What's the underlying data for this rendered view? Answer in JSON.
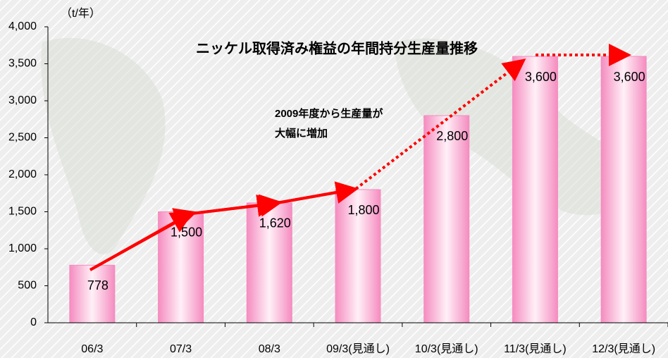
{
  "chart_data": {
    "type": "bar",
    "title": "ニッケル取得済み権益の年間持分生産量推移",
    "y_unit": "（t/年）",
    "annotation": [
      "2009年度から生産量が",
      "大幅に増加"
    ],
    "categories": [
      "06/3",
      "07/3",
      "08/3",
      "09/3(見通し)",
      "10/3(見通し)",
      "11/3(見通し)",
      "12/3(見通し)"
    ],
    "values": [
      778,
      1500,
      1620,
      1800,
      2800,
      3600,
      3600
    ],
    "value_labels": [
      "778",
      "1,500",
      "1,620",
      "1,800",
      "2,800",
      "3,600",
      "3,600"
    ],
    "color": "#f58cc0",
    "ylim": [
      0,
      4000
    ],
    "yticks": [
      0,
      500,
      {
        "value": 1000,
        "label": "1,000"
      },
      {
        "value": 1500,
        "label": "1,500"
      },
      {
        "value": 2000,
        "label": "2,000"
      },
      {
        "value": 2500,
        "label": "2,500"
      },
      {
        "value": 3000,
        "label": "3,000"
      },
      {
        "value": 3500,
        "label": "3,500"
      },
      {
        "value": 4000,
        "label": "4,000"
      }
    ]
  }
}
